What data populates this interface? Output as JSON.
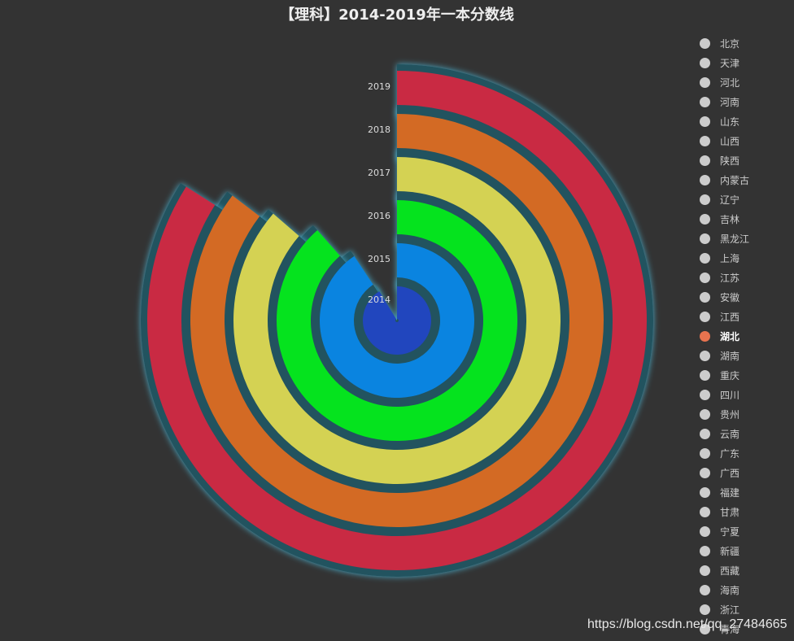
{
  "chart_data": {
    "type": "polar-bar",
    "title": "【理科】2014-2019年一本分数线",
    "categories": [
      "2014",
      "2015",
      "2016",
      "2017",
      "2018",
      "2019"
    ],
    "series": [
      {
        "values": [
          548,
          544,
          531,
          518,
          512,
          504
        ]
      }
    ],
    "value_max": 600,
    "start_angle_deg": 90,
    "direction": "clockwise",
    "colors": [
      "#2146be",
      "#0a84e0",
      "#05e31e",
      "#d4d253",
      "#d36a24",
      "#c92a43"
    ],
    "ring_gap_color": "#24535e",
    "glow_color": "#4cb8d8",
    "legend_selected": "湖北",
    "legend_items": [
      "北京",
      "天津",
      "河北",
      "河南",
      "山东",
      "山西",
      "陕西",
      "内蒙古",
      "辽宁",
      "吉林",
      "黑龙江",
      "上海",
      "江苏",
      "安徽",
      "江西",
      "湖北",
      "湖南",
      "重庆",
      "四川",
      "贵州",
      "云南",
      "广东",
      "广西",
      "福建",
      "甘肃",
      "宁夏",
      "新疆",
      "西藏",
      "海南",
      "浙江",
      "青海"
    ],
    "legend_placement": "right",
    "grid": false
  },
  "watermark": "https://blog.csdn.net/qq_27484665"
}
